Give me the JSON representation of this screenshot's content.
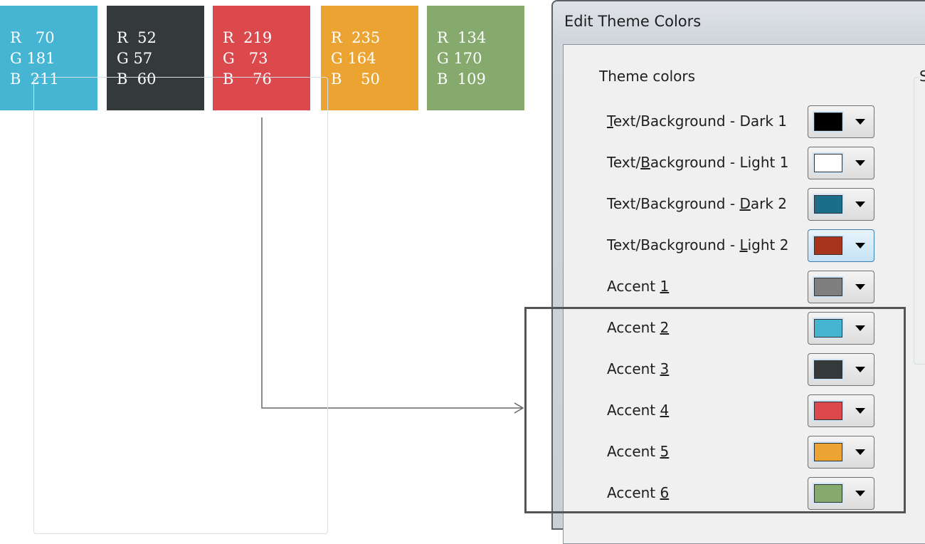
{
  "cards": [
    {
      "color": "#46b5d3",
      "r": "R   70",
      "g": "G 181",
      "b": "B  211"
    },
    {
      "color": "#34393c",
      "r": "R  52",
      "g": "G 57",
      "b": "B  60"
    },
    {
      "color": "#db494c",
      "r": "R  219",
      "g": "G   73",
      "b": "B    76"
    },
    {
      "color": "#eba432",
      "r": "R  235",
      "g": "G 164",
      "b": "B    50"
    },
    {
      "color": "#86aa6d",
      "r": "R  134",
      "g": "G 170",
      "b": "B  109"
    }
  ],
  "dialog": {
    "title": "Edit Theme Colors",
    "group_label": "Theme colors",
    "group2_label": "S",
    "rows": [
      {
        "pre": "",
        "key": "T",
        "post": "ext/Background - Dark 1",
        "color": "#000000"
      },
      {
        "pre": "Text/",
        "key": "B",
        "post": "ackground - Light 1",
        "color": "#ffffff"
      },
      {
        "pre": "Text/Background - ",
        "key": "D",
        "post": "ark 2",
        "color": "#1b6d8a"
      },
      {
        "pre": "Text/Background - ",
        "key": "L",
        "post": "ight 2",
        "color": "#a8341c",
        "focused": true
      },
      {
        "pre": "Accent ",
        "key": "1",
        "post": "",
        "color": "#7f7f7f"
      },
      {
        "pre": "Accent ",
        "key": "2",
        "post": "",
        "color": "#46b5d3"
      },
      {
        "pre": "Accent ",
        "key": "3",
        "post": "",
        "color": "#34393c"
      },
      {
        "pre": "Accent ",
        "key": "4",
        "post": "",
        "color": "#db494c"
      },
      {
        "pre": "Accent ",
        "key": "5",
        "post": "",
        "color": "#eba432"
      },
      {
        "pre": "Accent ",
        "key": "6",
        "post": "",
        "color": "#86aa6d"
      }
    ]
  }
}
